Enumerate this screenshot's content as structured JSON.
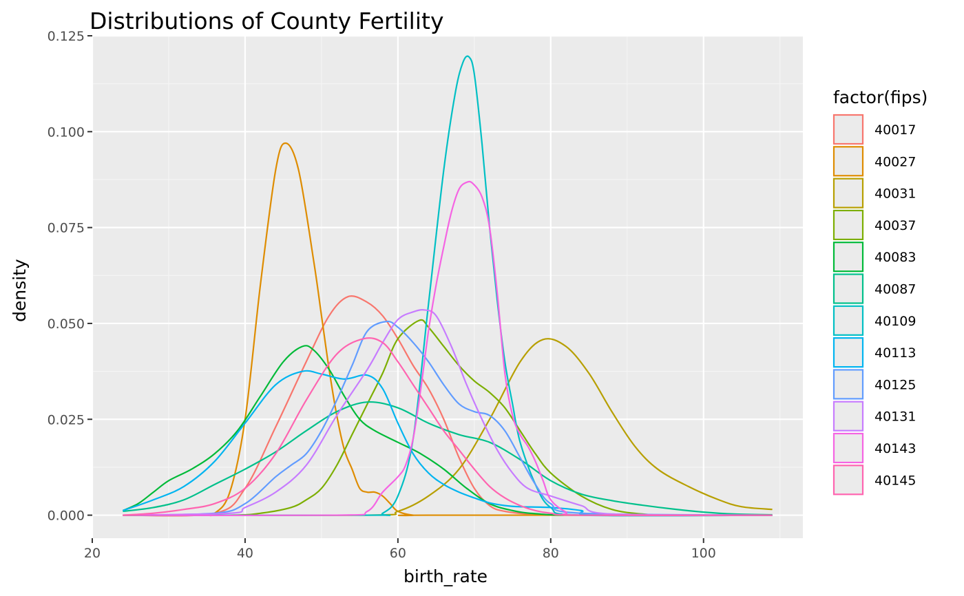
{
  "chart_data": {
    "type": "line",
    "subtype": "density",
    "title": "Distributions of County Fertility",
    "xlabel": "birth_rate",
    "ylabel": "density",
    "xlim": [
      20,
      113
    ],
    "ylim": [
      -0.006,
      0.125
    ],
    "x_ticks": [
      20,
      40,
      60,
      80,
      100
    ],
    "x_tick_labels": [
      "20",
      "40",
      "60",
      "80",
      "100"
    ],
    "y_ticks": [
      0,
      0.025,
      0.05,
      0.075,
      0.1,
      0.125
    ],
    "y_tick_labels": [
      "0.000",
      "0.025",
      "0.050",
      "0.075",
      "0.100",
      "0.125"
    ],
    "grid": true,
    "legend": {
      "title": "factor(fips)",
      "position": "right"
    },
    "series": [
      {
        "name": "40017",
        "color": "#F8766D",
        "x": [
          24,
          36,
          40,
          44,
          48,
          51,
          53.5,
          56,
          58,
          60,
          62,
          64,
          66,
          68,
          70,
          72,
          74,
          78,
          84,
          109
        ],
        "y": [
          0,
          0.0005,
          0.007,
          0.023,
          0.04,
          0.052,
          0.057,
          0.0555,
          0.052,
          0.046,
          0.039,
          0.033,
          0.025,
          0.015,
          0.007,
          0.0025,
          0.001,
          0.0002,
          0,
          0
        ]
      },
      {
        "name": "40027",
        "color": "#DE8C00",
        "x": [
          24,
          34,
          36,
          38,
          40,
          42,
          44,
          45.3,
          47,
          49,
          50,
          51,
          52,
          53,
          54,
          55,
          56,
          57,
          58,
          59,
          60,
          62,
          64,
          109
        ],
        "y": [
          0,
          0,
          0.0005,
          0.006,
          0.025,
          0.06,
          0.09,
          0.097,
          0.09,
          0.066,
          0.052,
          0.038,
          0.026,
          0.017,
          0.012,
          0.007,
          0.006,
          0.006,
          0.005,
          0.003,
          0.001,
          0,
          0,
          0
        ]
      },
      {
        "name": "40031",
        "color": "#B79F00",
        "x": [
          24,
          56,
          60,
          64,
          68,
          72,
          76,
          79,
          82,
          85,
          88,
          91,
          94,
          98,
          102,
          105,
          109
        ],
        "y": [
          0,
          0,
          0.001,
          0.005,
          0.012,
          0.025,
          0.04,
          0.0458,
          0.044,
          0.037,
          0.027,
          0.018,
          0.012,
          0.0075,
          0.004,
          0.0022,
          0.0015
        ]
      },
      {
        "name": "40037",
        "color": "#7CAE00",
        "x": [
          24,
          38,
          42,
          46,
          48,
          50,
          52,
          54,
          56,
          58,
          60,
          62.8,
          64,
          66,
          68,
          70,
          72,
          74,
          76,
          78,
          80,
          84,
          88,
          92,
          96,
          109
        ],
        "y": [
          0,
          0,
          0.0005,
          0.002,
          0.004,
          0.007,
          0.013,
          0.021,
          0.029,
          0.037,
          0.046,
          0.0508,
          0.049,
          0.044,
          0.039,
          0.035,
          0.032,
          0.028,
          0.022,
          0.016,
          0.011,
          0.005,
          0.0015,
          0.0003,
          0,
          0
        ]
      },
      {
        "name": "40083",
        "color": "#00BA38",
        "x": [
          24,
          26,
          28,
          30,
          33,
          36,
          39,
          42,
          45,
          47.5,
          49,
          51,
          53,
          55,
          57,
          60,
          63,
          66,
          69,
          72,
          75,
          78,
          84,
          109
        ],
        "y": [
          0.0012,
          0.003,
          0.006,
          0.009,
          0.012,
          0.016,
          0.022,
          0.031,
          0.04,
          0.044,
          0.043,
          0.038,
          0.031,
          0.025,
          0.022,
          0.019,
          0.016,
          0.012,
          0.007,
          0.003,
          0.0012,
          0.0004,
          0,
          0
        ]
      },
      {
        "name": "40087",
        "color": "#00C08B",
        "x": [
          24,
          28,
          32,
          36,
          40,
          44,
          48,
          52,
          56,
          60,
          64,
          68,
          72,
          76,
          80,
          84,
          88,
          92,
          96,
          100,
          104,
          109
        ],
        "y": [
          0.001,
          0.002,
          0.004,
          0.008,
          0.012,
          0.0165,
          0.022,
          0.027,
          0.0295,
          0.028,
          0.024,
          0.021,
          0.019,
          0.0145,
          0.009,
          0.0055,
          0.0038,
          0.0026,
          0.0016,
          0.0008,
          0.0003,
          0.0001
        ]
      },
      {
        "name": "40109",
        "color": "#00BFC4",
        "x": [
          24,
          56,
          58,
          60,
          62,
          64,
          66,
          67.5,
          68.5,
          69.3,
          70,
          71,
          72,
          73,
          74,
          75,
          76,
          78,
          80,
          84,
          109
        ],
        "y": [
          0,
          0,
          0.0005,
          0.005,
          0.02,
          0.055,
          0.09,
          0.11,
          0.118,
          0.1195,
          0.115,
          0.097,
          0.075,
          0.056,
          0.04,
          0.029,
          0.019,
          0.008,
          0.002,
          0,
          0
        ]
      },
      {
        "name": "40113",
        "color": "#00B4F0",
        "x": [
          24,
          28,
          32,
          36,
          40,
          44,
          47.5,
          50,
          53,
          56,
          58,
          60,
          62,
          64,
          66,
          68,
          70,
          72,
          74,
          76,
          80,
          84,
          86,
          109
        ],
        "y": [
          0.0012,
          0.004,
          0.0075,
          0.014,
          0.024,
          0.034,
          0.0375,
          0.0368,
          0.0355,
          0.0365,
          0.033,
          0.024,
          0.016,
          0.011,
          0.008,
          0.006,
          0.0045,
          0.0032,
          0.0025,
          0.0022,
          0.002,
          0.0012,
          0,
          0
        ]
      },
      {
        "name": "40125",
        "color": "#619CFF",
        "x": [
          24,
          36,
          40,
          44,
          46,
          48,
          50,
          52,
          54,
          56,
          58.5,
          60,
          62,
          64,
          66,
          68,
          70,
          72,
          74,
          76,
          78,
          80,
          84,
          109
        ],
        "y": [
          0,
          0.0005,
          0.003,
          0.01,
          0.013,
          0.016,
          0.022,
          0.03,
          0.039,
          0.048,
          0.0505,
          0.049,
          0.045,
          0.04,
          0.034,
          0.029,
          0.027,
          0.026,
          0.022,
          0.015,
          0.008,
          0.003,
          0.0005,
          0
        ]
      },
      {
        "name": "40131",
        "color": "#C77CFF",
        "x": [
          24,
          38,
          40,
          44,
          48,
          52,
          56,
          58,
          60,
          62,
          63.5,
          65,
          67,
          69,
          71,
          73,
          75,
          77,
          80,
          84,
          88,
          109
        ],
        "y": [
          0,
          0.0005,
          0.002,
          0.006,
          0.013,
          0.026,
          0.038,
          0.045,
          0.051,
          0.053,
          0.0535,
          0.052,
          0.044,
          0.034,
          0.025,
          0.017,
          0.011,
          0.007,
          0.005,
          0.0025,
          0.0003,
          0
        ]
      },
      {
        "name": "40143",
        "color": "#F564E3",
        "x": [
          24,
          52,
          56,
          58,
          60,
          61,
          62,
          63,
          64,
          65,
          66,
          67,
          68,
          69,
          69.8,
          71,
          72,
          73,
          74,
          75,
          76,
          77,
          78,
          79,
          80,
          82,
          84,
          109
        ],
        "y": [
          0,
          0,
          0.001,
          0.006,
          0.01,
          0.013,
          0.02,
          0.033,
          0.048,
          0.06,
          0.07,
          0.079,
          0.085,
          0.0868,
          0.0865,
          0.083,
          0.075,
          0.058,
          0.037,
          0.026,
          0.021,
          0.018,
          0.014,
          0.009,
          0.004,
          0.0008,
          0,
          0
        ]
      },
      {
        "name": "40145",
        "color": "#FF64B0",
        "x": [
          24,
          28,
          32,
          36,
          40,
          44,
          48,
          52,
          55.5,
          58,
          60,
          62,
          64,
          66,
          68,
          70,
          72,
          74,
          76,
          78,
          80,
          84,
          109
        ],
        "y": [
          0,
          0.0005,
          0.0015,
          0.003,
          0.007,
          0.016,
          0.03,
          0.042,
          0.046,
          0.045,
          0.04,
          0.034,
          0.028,
          0.022,
          0.017,
          0.012,
          0.0075,
          0.0045,
          0.0025,
          0.0012,
          0.0005,
          0,
          0
        ]
      }
    ]
  }
}
